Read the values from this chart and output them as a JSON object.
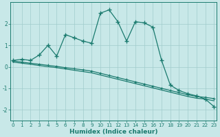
{
  "xlabel": "Humidex (Indice chaleur)",
  "bg_color": "#c8e8e8",
  "grid_color": "#a0cccc",
  "line_color": "#1a7a6e",
  "xlim": [
    -0.3,
    23.3
  ],
  "ylim": [
    -2.5,
    3.0
  ],
  "yticks": [
    -2,
    -1,
    0,
    1,
    2
  ],
  "xticks": [
    0,
    1,
    2,
    3,
    4,
    5,
    6,
    7,
    8,
    9,
    10,
    11,
    12,
    13,
    14,
    15,
    16,
    17,
    18,
    19,
    20,
    21,
    22,
    23
  ],
  "main_x": [
    0,
    1,
    2,
    3,
    4,
    5,
    6,
    7,
    8,
    9,
    10,
    11,
    12,
    13,
    14,
    15,
    16,
    17,
    18,
    19,
    20,
    21,
    22,
    23
  ],
  "main_y": [
    0.3,
    0.35,
    0.3,
    0.55,
    1.0,
    0.5,
    1.5,
    1.35,
    1.2,
    1.1,
    2.5,
    2.65,
    2.1,
    1.2,
    2.1,
    2.05,
    1.85,
    0.3,
    -0.85,
    -1.1,
    -1.25,
    -1.35,
    -1.5,
    -1.85
  ],
  "line2_x": [
    0,
    1,
    2,
    3,
    4,
    5,
    6,
    7,
    8,
    9,
    10,
    11,
    12,
    13,
    14,
    15,
    16,
    17,
    18,
    19,
    20,
    21,
    22,
    23
  ],
  "line2_y": [
    0.28,
    0.22,
    0.17,
    0.12,
    0.07,
    0.02,
    -0.04,
    -0.09,
    -0.14,
    -0.2,
    -0.3,
    -0.4,
    -0.5,
    -0.6,
    -0.7,
    -0.8,
    -0.9,
    -1.0,
    -1.1,
    -1.2,
    -1.3,
    -1.38,
    -1.42,
    -1.48
  ],
  "line3_x": [
    0,
    1,
    2,
    3,
    4,
    5,
    6,
    7,
    8,
    9,
    10,
    11,
    12,
    13,
    14,
    15,
    16,
    17,
    18,
    19,
    20,
    21,
    22,
    23
  ],
  "line3_y": [
    0.22,
    0.17,
    0.12,
    0.06,
    0.01,
    -0.04,
    -0.1,
    -0.16,
    -0.22,
    -0.28,
    -0.38,
    -0.48,
    -0.58,
    -0.68,
    -0.78,
    -0.88,
    -0.98,
    -1.08,
    -1.18,
    -1.28,
    -1.38,
    -1.46,
    -1.5,
    -1.58
  ]
}
